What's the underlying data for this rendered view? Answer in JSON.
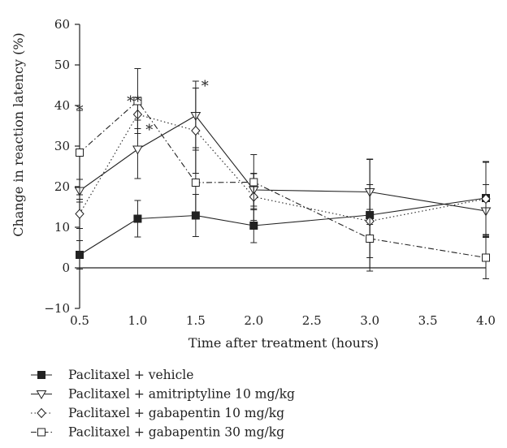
{
  "chart_data": {
    "type": "line",
    "xlabel": "Time after treatment (hours)",
    "ylabel": "Change in reaction latency (%)",
    "x": [
      0.5,
      1.0,
      1.5,
      2.0,
      3.0,
      4.0
    ],
    "xticks": [
      "0.5",
      "1.0",
      "1.5",
      "2.0",
      "2.5",
      "3.0",
      "3.5",
      "4.0"
    ],
    "xtick_values": [
      0.5,
      1.0,
      1.5,
      2.0,
      2.5,
      3.0,
      3.5,
      4.0
    ],
    "yticks": [
      "−10",
      "0",
      "10",
      "20",
      "30",
      "40",
      "50",
      "60"
    ],
    "ytick_values": [
      -10,
      0,
      10,
      20,
      30,
      40,
      50,
      60
    ],
    "xlim": [
      0.5,
      4.0
    ],
    "ylim": [
      -10,
      60
    ],
    "grid": false,
    "legend_position": "bottom-left",
    "series": [
      {
        "name": "Paclitaxel + vehicle",
        "marker": "filled-square",
        "line": "solid",
        "values": [
          3.2,
          12.1,
          12.9,
          10.4,
          13.0,
          17.2
        ],
        "error": [
          3.5,
          4.5,
          5.2,
          4.2,
          13.8,
          9.0
        ]
      },
      {
        "name": "Paclitaxel + amitriptyline 10 mg/kg",
        "marker": "open-triangle-down",
        "line": "solid",
        "values": [
          19.0,
          29.2,
          37.5,
          19.2,
          18.7,
          14.0
        ],
        "error": [
          2.8,
          7.2,
          8.5,
          4.0,
          8.0,
          6.5
        ]
      },
      {
        "name": "Paclitaxel + gabapentin 10 mg/kg",
        "marker": "open-diamond",
        "line": "dotted",
        "values": [
          13.3,
          37.8,
          33.8,
          17.5,
          11.5,
          17.0
        ],
        "error": [
          3.6,
          3.5,
          10.5,
          5.8,
          9.0,
          9.0
        ]
      },
      {
        "name": "Paclitaxel + gabapentin 30 mg/kg",
        "marker": "open-square",
        "line": "dashdot",
        "values": [
          28.4,
          41.1,
          21.0,
          21.1,
          7.2,
          2.5
        ],
        "error": [
          10.4,
          8.0,
          8.6,
          6.8,
          7.2,
          5.2
        ]
      }
    ],
    "annotations": [
      {
        "text": "*",
        "x": 0.5,
        "y": 39.6
      },
      {
        "text": "**",
        "x": 0.97,
        "y": 41.8
      },
      {
        "text": "*",
        "x": 1.1,
        "y": 34.8
      },
      {
        "text": "*",
        "x": 1.58,
        "y": 45.6
      }
    ]
  }
}
